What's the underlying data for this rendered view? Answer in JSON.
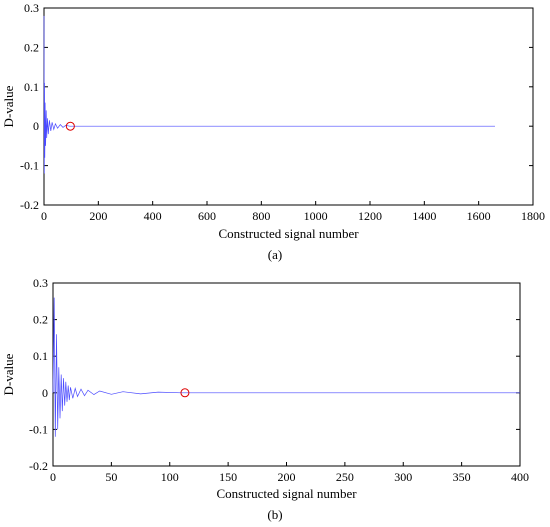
{
  "chart_data": [
    {
      "type": "line",
      "panel_label": "(a)",
      "xlabel": "Constructed signal number",
      "ylabel": "D-value",
      "xlim": [
        0,
        1800
      ],
      "ylim": [
        -0.2,
        0.3
      ],
      "xticks": [
        0,
        200,
        400,
        600,
        800,
        1000,
        1200,
        1400,
        1600,
        1800
      ],
      "yticks": [
        -0.2,
        -0.1,
        0,
        0.1,
        0.2,
        0.3
      ],
      "ytick_labels": [
        "-0.2",
        "-0.1",
        "0",
        "0.1",
        "0.2",
        "0.3"
      ],
      "grid": false,
      "legend": "none",
      "series": [
        {
          "color": "#4a4aff",
          "x_max": 1660,
          "points": [
            [
              0,
              0.28
            ],
            [
              1,
              -0.12
            ],
            [
              2,
              0.11
            ],
            [
              3,
              -0.08
            ],
            [
              4,
              0.06
            ],
            [
              6,
              -0.05
            ],
            [
              8,
              0.04
            ],
            [
              10,
              -0.03
            ],
            [
              13,
              0.02
            ],
            [
              16,
              -0.02
            ],
            [
              20,
              0.015
            ],
            [
              25,
              -0.012
            ],
            [
              30,
              0.01
            ],
            [
              36,
              -0.008
            ],
            [
              42,
              0.006
            ],
            [
              50,
              -0.005
            ],
            [
              60,
              0.004
            ],
            [
              70,
              -0.003
            ],
            [
              80,
              0.002
            ],
            [
              95,
              0.0
            ],
            [
              120,
              0.0
            ],
            [
              1660,
              0.0
            ]
          ]
        }
      ],
      "markers": [
        {
          "x": 97,
          "y": 0,
          "style": "circle",
          "color": "#dd0000"
        }
      ]
    },
    {
      "type": "line",
      "panel_label": "(b)",
      "xlabel": "Constructed signal number",
      "ylabel": "D-value",
      "xlim": [
        0,
        400
      ],
      "ylim": [
        -0.2,
        0.3
      ],
      "xticks": [
        0,
        50,
        100,
        150,
        200,
        250,
        300,
        350,
        400
      ],
      "yticks": [
        -0.2,
        -0.1,
        0,
        0.1,
        0.2,
        0.3
      ],
      "ytick_labels": [
        "-0.2",
        "-0.1",
        "0",
        "0.1",
        "0.2",
        "0.3"
      ],
      "grid": false,
      "legend": "none",
      "series": [
        {
          "color": "#4a4aff",
          "x_max": 400,
          "points": [
            [
              0,
              0.0
            ],
            [
              1,
              0.26
            ],
            [
              2,
              -0.12
            ],
            [
              3,
              0.16
            ],
            [
              4,
              -0.1
            ],
            [
              5,
              0.07
            ],
            [
              6,
              -0.07
            ],
            [
              7,
              0.05
            ],
            [
              8,
              -0.05
            ],
            [
              9,
              0.04
            ],
            [
              10,
              -0.035
            ],
            [
              11,
              0.03
            ],
            [
              12,
              -0.025
            ],
            [
              13,
              0.02
            ],
            [
              14,
              -0.02
            ],
            [
              15,
              0.015
            ],
            [
              17,
              -0.015
            ],
            [
              19,
              0.012
            ],
            [
              21,
              -0.01
            ],
            [
              24,
              0.01
            ],
            [
              27,
              -0.008
            ],
            [
              30,
              0.007
            ],
            [
              35,
              -0.005
            ],
            [
              40,
              0.005
            ],
            [
              50,
              -0.004
            ],
            [
              60,
              0.003
            ],
            [
              75,
              -0.003
            ],
            [
              90,
              0.002
            ],
            [
              110,
              0.0
            ],
            [
              400,
              0.0
            ]
          ]
        }
      ],
      "markers": [
        {
          "x": 113,
          "y": 0,
          "style": "circle",
          "color": "#dd0000"
        }
      ]
    }
  ]
}
